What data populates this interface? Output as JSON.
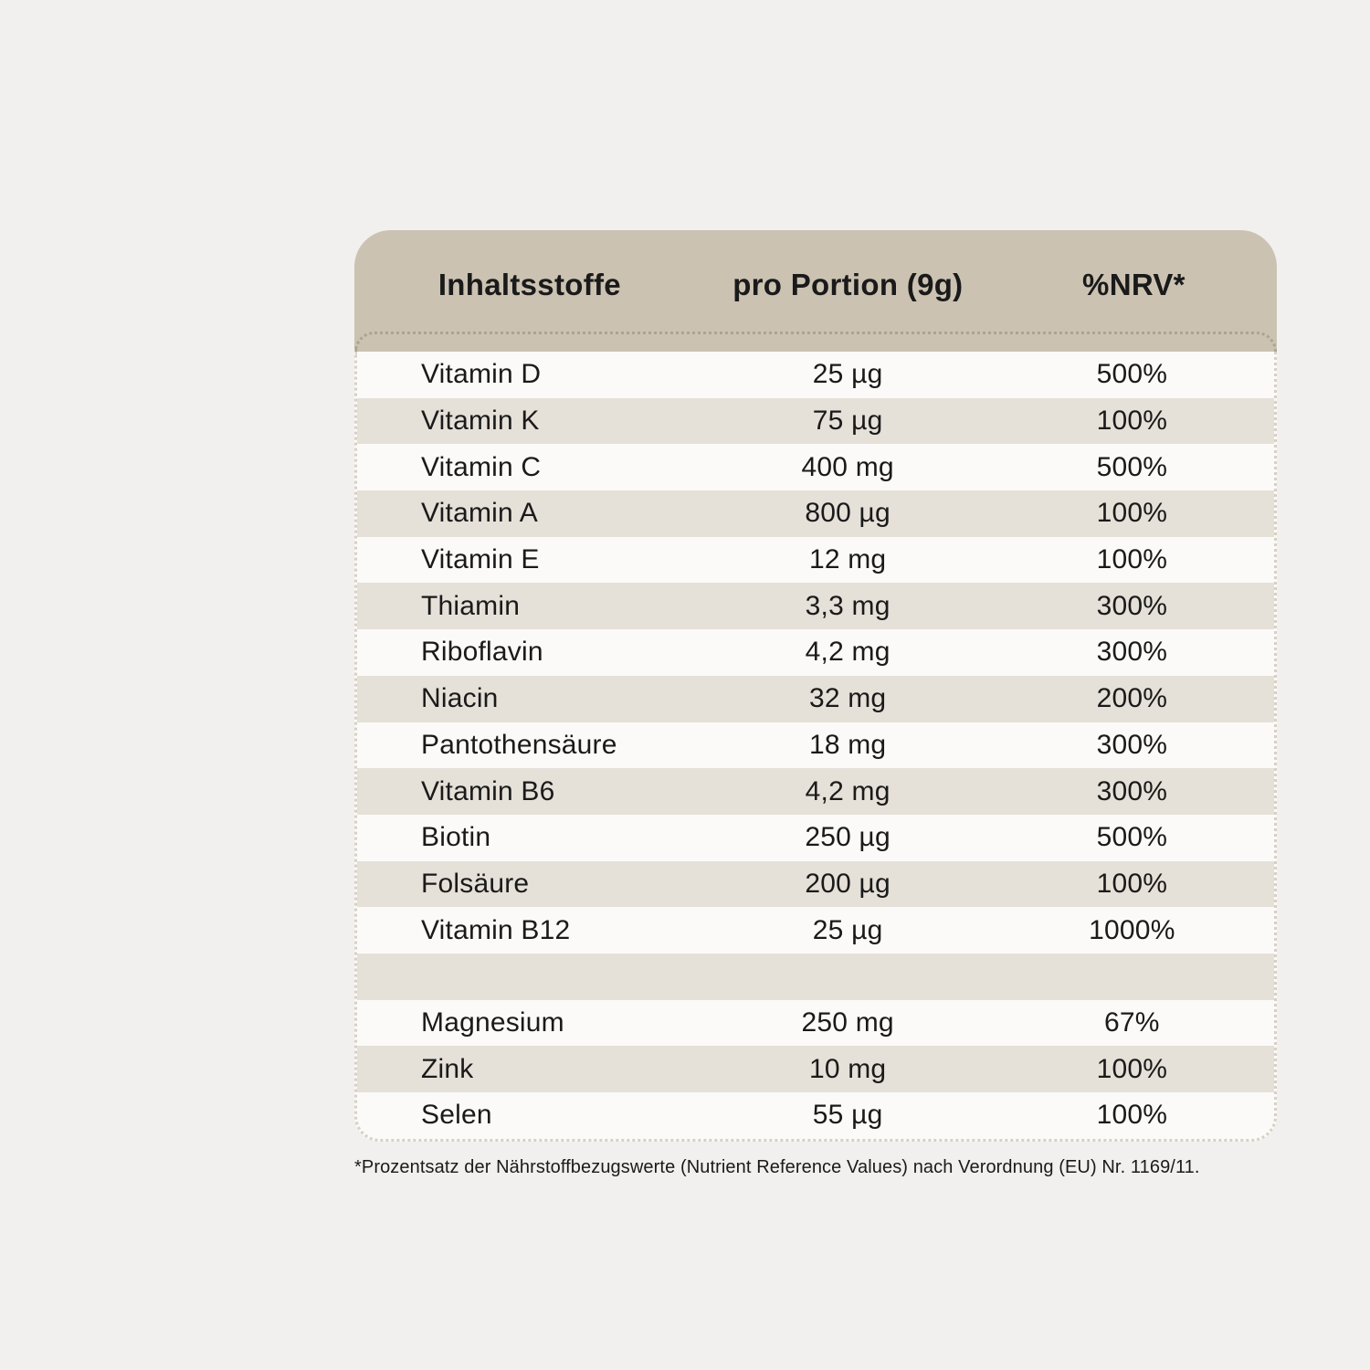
{
  "theme": {
    "page_bg": "#f1f0ee",
    "header_bg": "#cbc2b2",
    "row_alt_bg": "#e5e0d8",
    "row_bg": "#fbfaf8",
    "border_dot": "#d8d0c3",
    "text": "#1a1a1a"
  },
  "table": {
    "header": {
      "col_ingredient": "Inhaltsstoffe",
      "col_per_portion": "pro Portion (9g)",
      "col_nrv": "%NRV*"
    },
    "rows": [
      {
        "name": "Vitamin D",
        "amount": "25 µg",
        "nrv": "500%"
      },
      {
        "name": "Vitamin K",
        "amount": "75 µg",
        "nrv": "100%"
      },
      {
        "name": "Vitamin C",
        "amount": "400 mg",
        "nrv": "500%"
      },
      {
        "name": "Vitamin A",
        "amount": "800 µg",
        "nrv": "100%"
      },
      {
        "name": "Vitamin E",
        "amount": "12 mg",
        "nrv": "100%"
      },
      {
        "name": "Thiamin",
        "amount": "3,3 mg",
        "nrv": "300%"
      },
      {
        "name": "Riboflavin",
        "amount": "4,2 mg",
        "nrv": "300%"
      },
      {
        "name": "Niacin",
        "amount": "32 mg",
        "nrv": "200%"
      },
      {
        "name": "Pantothensäure",
        "amount": "18 mg",
        "nrv": "300%"
      },
      {
        "name": "Vitamin B6",
        "amount": "4,2 mg",
        "nrv": "300%"
      },
      {
        "name": "Biotin",
        "amount": "250 µg",
        "nrv": "500%"
      },
      {
        "name": "Folsäure",
        "amount": "200 µg",
        "nrv": "100%"
      },
      {
        "name": "Vitamin B12",
        "amount": "25 µg",
        "nrv": "1000%"
      },
      {
        "name": "",
        "amount": "",
        "nrv": ""
      },
      {
        "name": "Magnesium",
        "amount": "250 mg",
        "nrv": "67%"
      },
      {
        "name": "Zink",
        "amount": "10 mg",
        "nrv": "100%"
      },
      {
        "name": "Selen",
        "amount": "55 µg",
        "nrv": "100%"
      }
    ],
    "footnote": "*Prozentsatz der Nährstoffbezugswerte (Nutrient Reference Values) nach Verordnung (EU) Nr. 1169/11."
  }
}
